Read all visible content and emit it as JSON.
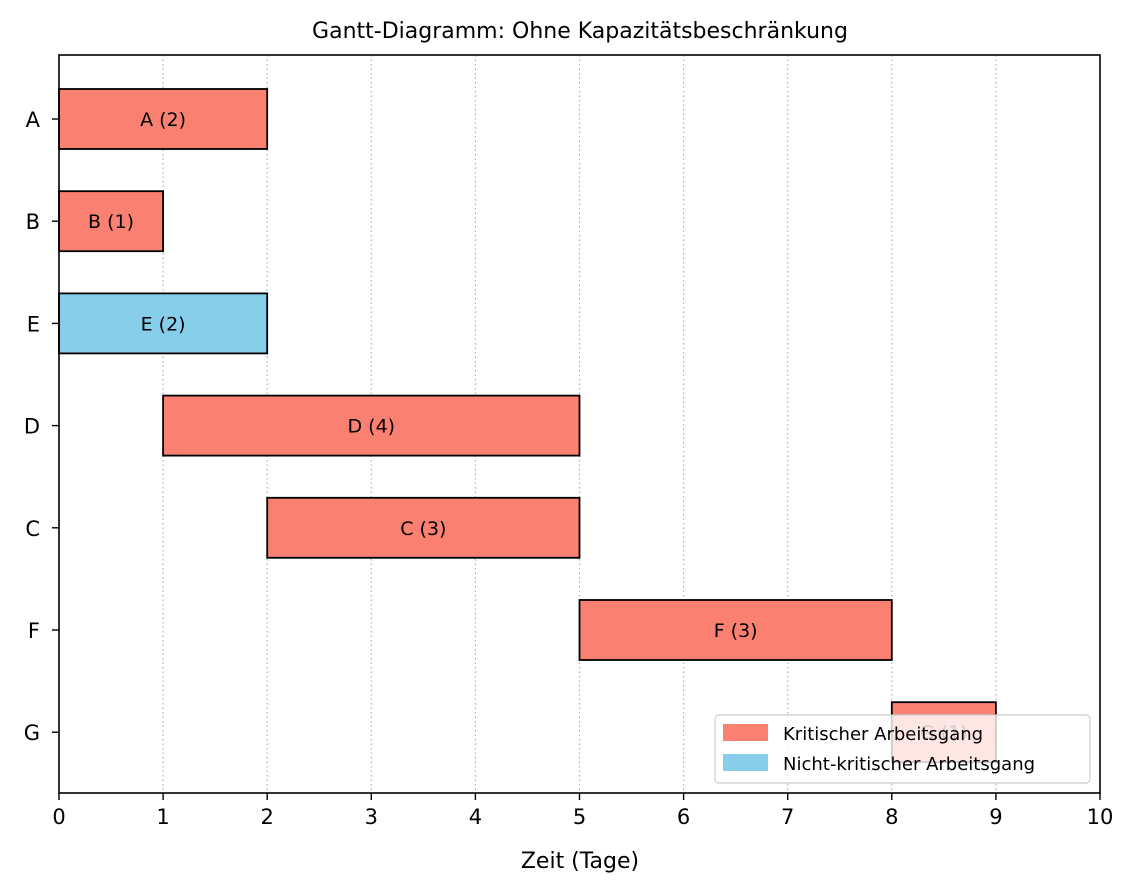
{
  "chart_data": {
    "type": "gantt",
    "title": "Gantt-Diagramm: Ohne Kapazitätsbeschränkung",
    "xlabel": "Zeit (Tage)",
    "ylabel": "",
    "xlim": [
      0,
      10
    ],
    "x_ticks": [
      "0",
      "1",
      "2",
      "3",
      "4",
      "5",
      "6",
      "7",
      "8",
      "9",
      "10"
    ],
    "grid": "vertical dotted",
    "categories": [
      "A",
      "B",
      "E",
      "D",
      "C",
      "F",
      "G"
    ],
    "tasks": [
      {
        "name": "A",
        "start": 0,
        "duration": 2,
        "critical": true,
        "label": "A (2)"
      },
      {
        "name": "B",
        "start": 0,
        "duration": 1,
        "critical": true,
        "label": "B (1)"
      },
      {
        "name": "E",
        "start": 0,
        "duration": 2,
        "critical": false,
        "label": "E (2)"
      },
      {
        "name": "D",
        "start": 1,
        "duration": 4,
        "critical": true,
        "label": "D (4)"
      },
      {
        "name": "C",
        "start": 2,
        "duration": 3,
        "critical": true,
        "label": "C (3)"
      },
      {
        "name": "F",
        "start": 5,
        "duration": 3,
        "critical": true,
        "label": "F (3)"
      },
      {
        "name": "G",
        "start": 8,
        "duration": 1,
        "critical": true,
        "label": "G (1)"
      }
    ],
    "legend": {
      "position": "lower-right",
      "entries": [
        {
          "label": "Kritischer Arbeitsgang",
          "color": "#fa8072"
        },
        {
          "label": "Nicht-kritischer Arbeitsgang",
          "color": "#87ceeb"
        }
      ]
    },
    "colors": {
      "critical": "#fa8072",
      "noncritical": "#87ceeb"
    }
  }
}
